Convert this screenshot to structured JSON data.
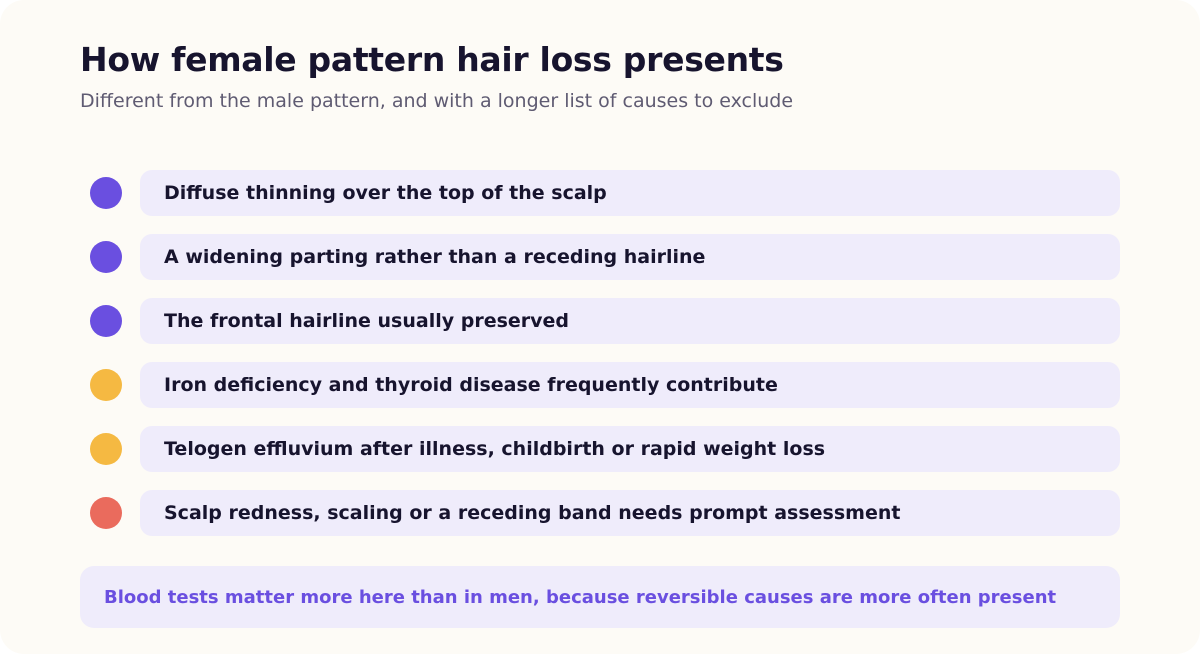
{
  "header": {
    "title": "How female pattern hair loss presents",
    "subtitle": "Different from the male pattern, and with a longer list of causes to exclude"
  },
  "colors": {
    "background": "#fdfbf6",
    "pill": "#efecfb",
    "title": "#17142e",
    "subtitle": "#5f5b72",
    "purple": "#6a4fe0",
    "amber": "#f5b942",
    "red": "#ea6b5d"
  },
  "items": [
    {
      "text": "Diffuse thinning over the top of the scalp",
      "dot_color": "#6a4fe0"
    },
    {
      "text": "A widening parting rather than a receding hairline",
      "dot_color": "#6a4fe0"
    },
    {
      "text": "The frontal hairline usually preserved",
      "dot_color": "#6a4fe0"
    },
    {
      "text": "Iron deficiency and thyroid disease frequently contribute",
      "dot_color": "#f5b942"
    },
    {
      "text": "Telogen effluvium after illness, childbirth or rapid weight loss",
      "dot_color": "#f5b942"
    },
    {
      "text": "Scalp redness, scaling or a receding band needs prompt assessment",
      "dot_color": "#ea6b5d"
    }
  ],
  "callout": {
    "text": "Blood tests matter more here than in men, because reversible causes are more often present"
  }
}
